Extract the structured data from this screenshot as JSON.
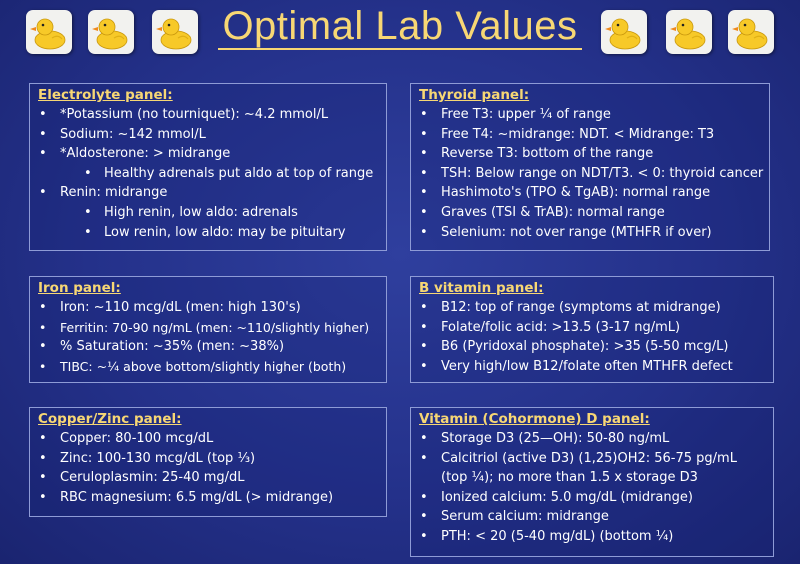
{
  "title": "Optimal Lab Values",
  "colors": {
    "background": "#24318a",
    "heading": "#f7d774",
    "text": "#ffffff",
    "panel_border": "#8e9bd6"
  },
  "decorations": {
    "icon": "rubber-duck-icon",
    "count": 6
  },
  "panels": {
    "electrolyte": {
      "title": "Electrolyte panel:",
      "items": [
        "*Potassium (no tourniquet): ~4.2 mmol/L",
        "Sodium: ~142 mmol/L",
        "*Aldosterone: > midrange",
        "Healthy adrenals put aldo at top of range",
        "Renin: midrange",
        "High renin, low aldo: adrenals",
        "Low renin, low aldo: may be pituitary"
      ]
    },
    "thyroid": {
      "title": "Thyroid panel:",
      "items": [
        "Free T3: upper ¼ of range",
        "Free T4: ~midrange: NDT. < Midrange: T3",
        "Reverse T3: bottom of the range",
        "TSH: Below range on NDT/T3. < 0: thyroid cancer",
        "Hashimoto's (TPO & TgAB): normal range",
        "Graves (TSI & TrAB): normal range",
        "Selenium: not over range (MTHFR if over)"
      ]
    },
    "iron": {
      "title": "Iron panel:",
      "items": [
        "Iron: ~110 mcg/dL (men: high 130's)",
        "Ferritin: 70-90 ng/mL (men: ~110/slightly higher)",
        "% Saturation: ~35% (men: ~38%)",
        "TIBC: ~¼ above bottom/slightly higher (both)"
      ]
    },
    "b_vitamin": {
      "title": "B vitamin panel:",
      "items": [
        "B12: top of range (symptoms at midrange)",
        "Folate/folic acid: >13.5 (3-17 ng/mL)",
        "B6 (Pyridoxal phosphate): >35 (5-50 mcg/L)",
        "Very high/low  B12/folate often MTHFR defect"
      ]
    },
    "copper_zinc": {
      "title": "Copper/Zinc panel:",
      "items": [
        "Copper: 80-100 mcg/dL",
        "Zinc: 100-130 mcg/dL (top ⅓)",
        "Ceruloplasmin: 25-40 mg/dL",
        "RBC magnesium: 6.5 mg/dL (> midrange)"
      ]
    },
    "vitamin_d": {
      "title": "Vitamin (Cohormone) D panel:",
      "items": [
        "Storage D3 (25—OH): 50-80 ng/mL",
        "Calcitriol (active D3) (1,25)OH2: 56-75 pg/mL (top ¼); no more than 1.5  x  storage D3",
        "Ionized calcium: 5.0 mg/dL (midrange)",
        "Serum calcium: midrange",
        "PTH: < 20 (5-40 mg/dL) (bottom ¼)"
      ]
    }
  }
}
